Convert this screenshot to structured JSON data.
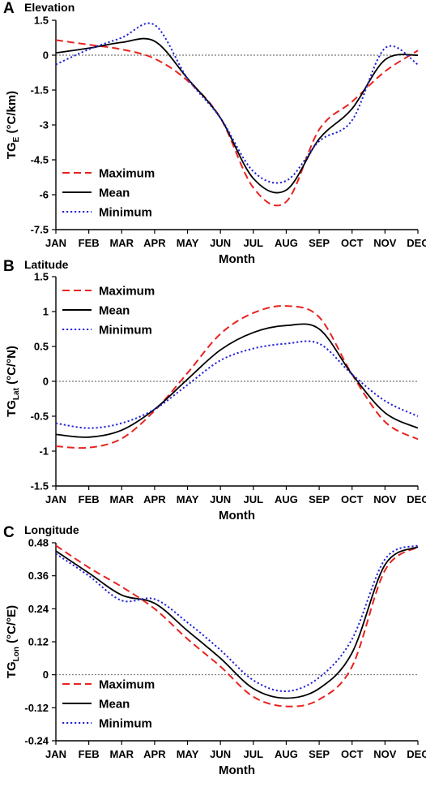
{
  "chart_data": [
    {
      "type": "line",
      "panel_label": "A",
      "title": "Elevation",
      "xlabel": "Month",
      "ylabel_main": "TG",
      "ylabel_sub": "E",
      "ylabel_unit": " (°C/km)",
      "categories": [
        "JAN",
        "FEB",
        "MAR",
        "APR",
        "MAY",
        "JUN",
        "JUL",
        "AUG",
        "SEP",
        "OCT",
        "NOV",
        "DEC"
      ],
      "ylim": [
        -7.5,
        1.5
      ],
      "yticks": [
        "1.5",
        "0",
        "-1.5",
        "-3",
        "-4.5",
        "-6",
        "-7.5"
      ],
      "yticks_values": [
        1.5,
        0,
        -1.5,
        -3,
        -4.5,
        -6,
        -7.5
      ],
      "zero_line": true,
      "legend_position": "bottom-left",
      "series": [
        {
          "name": "Maximum",
          "color": "#e8231f",
          "dash": "dashed",
          "values": [
            0.65,
            0.45,
            0.25,
            -0.15,
            -1.1,
            -2.7,
            -5.7,
            -6.3,
            -3.2,
            -2.0,
            -0.7,
            0.2
          ]
        },
        {
          "name": "Mean",
          "color": "#000000",
          "dash": "solid",
          "values": [
            0.1,
            0.3,
            0.55,
            0.6,
            -1.0,
            -2.7,
            -5.3,
            -5.8,
            -3.6,
            -2.3,
            -0.2,
            0.0
          ]
        },
        {
          "name": "Minimum",
          "color": "#2323d6",
          "dash": "dotted",
          "values": [
            -0.4,
            0.25,
            0.75,
            1.3,
            -1.0,
            -2.7,
            -5.0,
            -5.4,
            -3.7,
            -2.8,
            0.3,
            -0.4
          ]
        }
      ]
    },
    {
      "type": "line",
      "panel_label": "B",
      "title": "Latitude",
      "xlabel": "Month",
      "ylabel_main": "TG",
      "ylabel_sub": "Lat",
      "ylabel_unit": " (°C/°N)",
      "categories": [
        "JAN",
        "FEB",
        "MAR",
        "APR",
        "MAY",
        "JUN",
        "JUL",
        "AUG",
        "SEP",
        "OCT",
        "NOV",
        "DEC"
      ],
      "ylim": [
        -1.5,
        1.5
      ],
      "yticks": [
        "1.5",
        "1",
        "0.5",
        "0",
        "-0.5",
        "-1",
        "-1.5"
      ],
      "yticks_values": [
        1.5,
        1,
        0.5,
        0,
        -0.5,
        -1,
        -1.5
      ],
      "zero_line": true,
      "legend_position": "top-left",
      "series": [
        {
          "name": "Maximum",
          "color": "#e8231f",
          "dash": "dashed",
          "values": [
            -0.93,
            -0.95,
            -0.82,
            -0.42,
            0.12,
            0.68,
            0.98,
            1.08,
            0.92,
            0.1,
            -0.58,
            -0.83
          ]
        },
        {
          "name": "Mean",
          "color": "#000000",
          "dash": "solid",
          "values": [
            -0.76,
            -0.8,
            -0.7,
            -0.4,
            0.03,
            0.45,
            0.7,
            0.8,
            0.75,
            0.1,
            -0.45,
            -0.67
          ]
        },
        {
          "name": "Minimum",
          "color": "#2323d6",
          "dash": "dotted",
          "values": [
            -0.6,
            -0.67,
            -0.6,
            -0.4,
            -0.05,
            0.3,
            0.47,
            0.54,
            0.54,
            0.1,
            -0.28,
            -0.5
          ]
        }
      ]
    },
    {
      "type": "line",
      "panel_label": "C",
      "title": "Longitude",
      "xlabel": "Month",
      "ylabel_main": "TG",
      "ylabel_sub": "Lon",
      "ylabel_unit": " (°C/°E)",
      "categories": [
        "JAN",
        "FEB",
        "MAR",
        "APR",
        "MAY",
        "JUN",
        "JUL",
        "AUG",
        "SEP",
        "OCT",
        "NOV",
        "DEC"
      ],
      "ylim": [
        -0.24,
        0.48
      ],
      "yticks": [
        "0.48",
        "0.36",
        "0.24",
        "0.12",
        "0",
        "-0.12",
        "-0.24"
      ],
      "yticks_values": [
        0.48,
        0.36,
        0.24,
        0.12,
        0,
        -0.12,
        -0.24
      ],
      "zero_line": true,
      "legend_position": "bottom-left",
      "series": [
        {
          "name": "Maximum",
          "color": "#e8231f",
          "dash": "dashed",
          "values": [
            0.47,
            0.39,
            0.32,
            0.24,
            0.13,
            0.03,
            -0.08,
            -0.115,
            -0.09,
            0.03,
            0.38,
            0.465
          ]
        },
        {
          "name": "Mean",
          "color": "#000000",
          "dash": "solid",
          "values": [
            0.45,
            0.37,
            0.29,
            0.26,
            0.16,
            0.06,
            -0.05,
            -0.085,
            -0.05,
            0.08,
            0.4,
            0.465
          ]
        },
        {
          "name": "Minimum",
          "color": "#2323d6",
          "dash": "dotted",
          "values": [
            0.44,
            0.36,
            0.27,
            0.275,
            0.19,
            0.09,
            -0.02,
            -0.06,
            -0.01,
            0.13,
            0.42,
            0.47
          ]
        }
      ]
    }
  ]
}
